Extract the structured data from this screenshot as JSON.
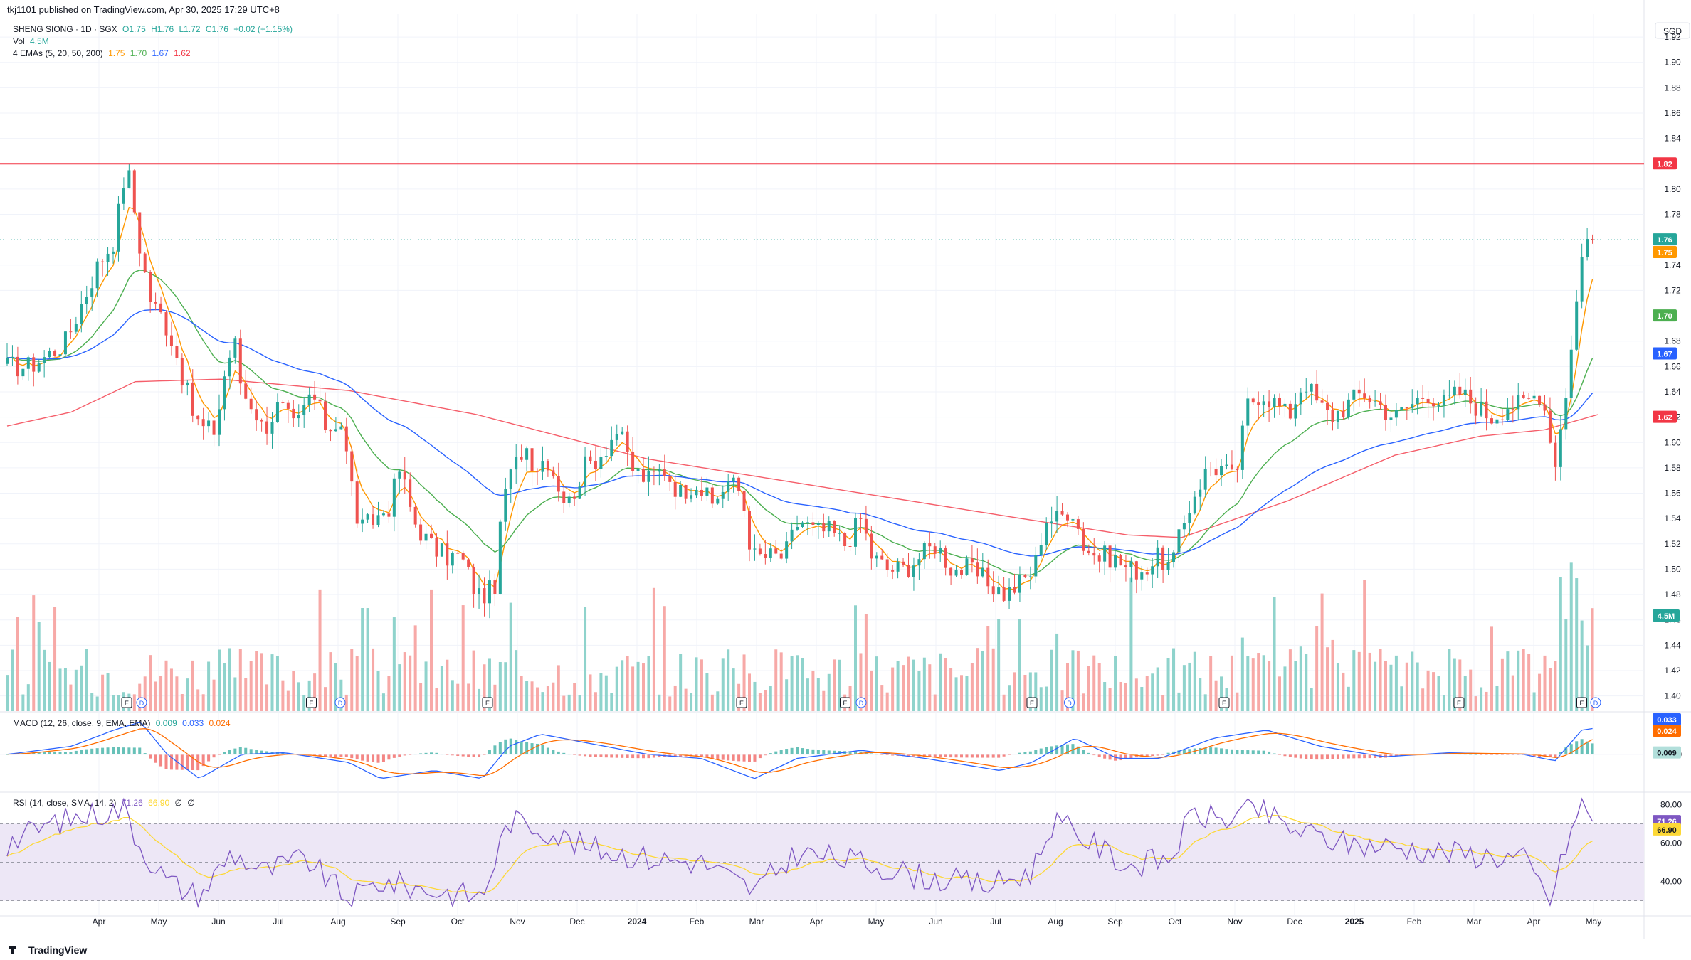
{
  "publisher": {
    "text": "tkj1101 published on TradingView.com, Apr 30, 2025 17:29 UTC+8"
  },
  "legend": {
    "symbol": "SHENG SIONG · 1D · SGX",
    "ohlc": {
      "o": "O1.75",
      "h": "H1.76",
      "l": "L1.72",
      "c": "C1.76",
      "chg": "+0.02 (+1.15%)"
    },
    "vol_label": "Vol",
    "vol_value": "4.5M",
    "ema_label": "4 EMAs (5, 20, 50, 200)",
    "ema_values": [
      "1.75",
      "1.70",
      "1.67",
      "1.62"
    ]
  },
  "macd_legend": {
    "label": "MACD (12, 26, close, 9, EMA, EMA)",
    "values": [
      "0.009",
      "0.033",
      "0.024"
    ]
  },
  "rsi_legend": {
    "label": "RSI (14, close, SMA, 14, 2)",
    "values": [
      "71.26",
      "66.90",
      "∅",
      "∅"
    ]
  },
  "branding": "TradingView",
  "colors": {
    "up": "#26a69a",
    "down": "#ef5350",
    "ema5": "#ff9800",
    "ema20": "#4caf50",
    "ema50": "#2962ff",
    "ema200": "#f23645",
    "vol_up": "#8fd3cc",
    "vol_down": "#f7a9a7",
    "macd": "#2962ff",
    "signal": "#ff6d00",
    "rsi": "#7e57c2",
    "rsi_ma": "#fdd835",
    "rsi_band": "#ede7f6",
    "resistance": "#f23645",
    "grid": "#f0f3fa"
  },
  "chart_data": {
    "type": "candlestick",
    "symbol": "SHENG SIONG",
    "currency": "SGD",
    "price_axis": {
      "ticks": [
        "1.92",
        "1.90",
        "1.88",
        "1.86",
        "1.84",
        "1.80",
        "1.78",
        "1.74",
        "1.72",
        "1.68",
        "1.66",
        "1.64",
        "1.62",
        "1.60",
        "1.58",
        "1.56",
        "1.54",
        "1.52",
        "1.50",
        "1.48",
        "1.46",
        "1.44",
        "1.42",
        "1.40"
      ],
      "ylim": [
        1.388,
        1.938
      ]
    },
    "x_axis_ticks": [
      "Apr",
      "May",
      "Jun",
      "Jul",
      "Aug",
      "Sep",
      "Oct",
      "Nov",
      "Dec",
      "2024",
      "Feb",
      "Mar",
      "Apr",
      "May",
      "Jun",
      "Jul",
      "Aug",
      "Sep",
      "Oct",
      "Nov",
      "Dec",
      "2025",
      "Feb",
      "Mar",
      "Apr",
      "May"
    ],
    "resistance_level": 1.82,
    "price_labels": [
      "1.82",
      "1.76",
      "1.75",
      "1.70",
      "1.67",
      "1.62"
    ],
    "volume_label": "4.5M",
    "price_path": [
      [
        0,
        1.66
      ],
      [
        20,
        1.66
      ],
      [
        40,
        1.67
      ],
      [
        55,
        1.68
      ],
      [
        70,
        1.71
      ],
      [
        85,
        1.74
      ],
      [
        100,
        1.76
      ],
      [
        112,
        1.82
      ],
      [
        118,
        1.79
      ],
      [
        125,
        1.75
      ],
      [
        135,
        1.71
      ],
      [
        145,
        1.7
      ],
      [
        155,
        1.68
      ],
      [
        165,
        1.65
      ],
      [
        175,
        1.62
      ],
      [
        185,
        1.61
      ],
      [
        195,
        1.61
      ],
      [
        205,
        1.66
      ],
      [
        213,
        1.68
      ],
      [
        220,
        1.64
      ],
      [
        230,
        1.63
      ],
      [
        240,
        1.61
      ],
      [
        255,
        1.63
      ],
      [
        270,
        1.61
      ],
      [
        285,
        1.64
      ],
      [
        300,
        1.61
      ],
      [
        312,
        1.62
      ],
      [
        322,
        1.57
      ],
      [
        330,
        1.53
      ],
      [
        345,
        1.54
      ],
      [
        358,
        1.55
      ],
      [
        368,
        1.58
      ],
      [
        380,
        1.54
      ],
      [
        395,
        1.52
      ],
      [
        410,
        1.51
      ],
      [
        425,
        1.51
      ],
      [
        440,
        1.48
      ],
      [
        450,
        1.48
      ],
      [
        458,
        1.49
      ],
      [
        465,
        1.56
      ],
      [
        475,
        1.58
      ],
      [
        485,
        1.6
      ],
      [
        495,
        1.58
      ],
      [
        505,
        1.59
      ],
      [
        515,
        1.57
      ],
      [
        525,
        1.55
      ],
      [
        540,
        1.58
      ],
      [
        555,
        1.59
      ],
      [
        572,
        1.61
      ],
      [
        585,
        1.58
      ],
      [
        600,
        1.57
      ],
      [
        615,
        1.58
      ],
      [
        630,
        1.56
      ],
      [
        645,
        1.57
      ],
      [
        660,
        1.55
      ],
      [
        675,
        1.57
      ],
      [
        688,
        1.56
      ],
      [
        698,
        1.51
      ],
      [
        712,
        1.51
      ],
      [
        728,
        1.51
      ],
      [
        742,
        1.54
      ],
      [
        756,
        1.53
      ],
      [
        770,
        1.53
      ],
      [
        785,
        1.52
      ],
      [
        800,
        1.54
      ],
      [
        810,
        1.51
      ],
      [
        825,
        1.5
      ],
      [
        840,
        1.5
      ],
      [
        855,
        1.51
      ],
      [
        870,
        1.52
      ],
      [
        885,
        1.5
      ],
      [
        900,
        1.5
      ],
      [
        918,
        1.49
      ],
      [
        935,
        1.48
      ],
      [
        950,
        1.49
      ],
      [
        962,
        1.5
      ],
      [
        972,
        1.54
      ],
      [
        985,
        1.54
      ],
      [
        997,
        1.55
      ],
      [
        1008,
        1.52
      ],
      [
        1020,
        1.51
      ],
      [
        1035,
        1.51
      ],
      [
        1050,
        1.5
      ],
      [
        1065,
        1.5
      ],
      [
        1080,
        1.51
      ],
      [
        1090,
        1.5
      ],
      [
        1100,
        1.53
      ],
      [
        1112,
        1.56
      ],
      [
        1125,
        1.58
      ],
      [
        1138,
        1.58
      ],
      [
        1150,
        1.57
      ],
      [
        1162,
        1.63
      ],
      [
        1175,
        1.64
      ],
      [
        1190,
        1.63
      ],
      [
        1200,
        1.62
      ],
      [
        1215,
        1.65
      ],
      [
        1228,
        1.63
      ],
      [
        1240,
        1.62
      ],
      [
        1255,
        1.63
      ],
      [
        1270,
        1.64
      ],
      [
        1285,
        1.63
      ],
      [
        1300,
        1.62
      ],
      [
        1315,
        1.63
      ],
      [
        1330,
        1.64
      ],
      [
        1345,
        1.63
      ],
      [
        1360,
        1.64
      ],
      [
        1375,
        1.63
      ],
      [
        1390,
        1.62
      ],
      [
        1405,
        1.63
      ],
      [
        1420,
        1.63
      ],
      [
        1435,
        1.64
      ],
      [
        1443,
        1.62
      ],
      [
        1450,
        1.58
      ],
      [
        1456,
        1.62
      ],
      [
        1462,
        1.65
      ],
      [
        1470,
        1.71
      ],
      [
        1476,
        1.76
      ],
      [
        1482,
        1.76
      ],
      [
        1490,
        1.76
      ]
    ],
    "series": [
      {
        "name": "EMA 5",
        "last": 1.75
      },
      {
        "name": "EMA 20",
        "last": 1.7
      },
      {
        "name": "EMA 50",
        "last": 1.67
      },
      {
        "name": "EMA 200",
        "last": 1.62
      },
      {
        "name": "Vol",
        "last": "4.5M"
      }
    ],
    "ema200_path": [
      [
        0,
        1.613
      ],
      [
        60,
        1.624
      ],
      [
        120,
        1.648
      ],
      [
        200,
        1.65
      ],
      [
        320,
        1.641
      ],
      [
        440,
        1.622
      ],
      [
        600,
        1.587
      ],
      [
        800,
        1.56
      ],
      [
        950,
        1.54
      ],
      [
        1050,
        1.527
      ],
      [
        1100,
        1.525
      ],
      [
        1200,
        1.554
      ],
      [
        1300,
        1.59
      ],
      [
        1380,
        1.605
      ],
      [
        1440,
        1.61
      ],
      [
        1490,
        1.622
      ]
    ],
    "macd": {
      "axis_ticks": [
        "0.000"
      ],
      "values": {
        "histogram": 0.009,
        "macd": 0.033,
        "signal": 0.024
      },
      "path": [
        [
          0,
          0.0
        ],
        [
          60,
          0.01
        ],
        [
          100,
          0.03
        ],
        [
          125,
          0.04
        ],
        [
          150,
          0.0
        ],
        [
          180,
          -0.03
        ],
        [
          220,
          0.0
        ],
        [
          260,
          0.002
        ],
        [
          320,
          -0.01
        ],
        [
          350,
          -0.03
        ],
        [
          400,
          -0.02
        ],
        [
          445,
          -0.03
        ],
        [
          470,
          0.01
        ],
        [
          500,
          0.025
        ],
        [
          540,
          0.015
        ],
        [
          600,
          0.0
        ],
        [
          650,
          -0.005
        ],
        [
          700,
          -0.03
        ],
        [
          740,
          -0.005
        ],
        [
          800,
          0.005
        ],
        [
          860,
          -0.005
        ],
        [
          930,
          -0.02
        ],
        [
          960,
          -0.01
        ],
        [
          1000,
          0.02
        ],
        [
          1040,
          -0.005
        ],
        [
          1080,
          -0.005
        ],
        [
          1130,
          0.02
        ],
        [
          1180,
          0.03
        ],
        [
          1230,
          0.01
        ],
        [
          1290,
          -0.003
        ],
        [
          1350,
          0.002
        ],
        [
          1420,
          0.0
        ],
        [
          1450,
          -0.008
        ],
        [
          1475,
          0.03
        ],
        [
          1490,
          0.033
        ]
      ],
      "ylim": [
        -0.045,
        0.05
      ]
    },
    "rsi": {
      "axis_ticks": [
        "80.00",
        "60.00",
        "40.00"
      ],
      "upper": 70,
      "middle": 50,
      "lower": 30,
      "values": {
        "rsi": 71.26,
        "rsi_ma": 66.9
      },
      "path": [
        [
          0,
          60
        ],
        [
          40,
          70
        ],
        [
          80,
          75
        ],
        [
          110,
          78
        ],
        [
          125,
          58
        ],
        [
          150,
          40
        ],
        [
          180,
          32
        ],
        [
          210,
          55
        ],
        [
          240,
          45
        ],
        [
          280,
          52
        ],
        [
          320,
          30
        ],
        [
          350,
          40
        ],
        [
          400,
          35
        ],
        [
          445,
          32
        ],
        [
          470,
          72
        ],
        [
          500,
          68
        ],
        [
          540,
          58
        ],
        [
          600,
          52
        ],
        [
          650,
          50
        ],
        [
          700,
          35
        ],
        [
          740,
          55
        ],
        [
          800,
          50
        ],
        [
          860,
          42
        ],
        [
          920,
          38
        ],
        [
          960,
          45
        ],
        [
          980,
          72
        ],
        [
          1010,
          62
        ],
        [
          1050,
          48
        ],
        [
          1090,
          52
        ],
        [
          1110,
          75
        ],
        [
          1140,
          72
        ],
        [
          1170,
          78
        ],
        [
          1200,
          68
        ],
        [
          1250,
          60
        ],
        [
          1300,
          58
        ],
        [
          1350,
          55
        ],
        [
          1420,
          52
        ],
        [
          1446,
          30
        ],
        [
          1462,
          62
        ],
        [
          1475,
          80
        ],
        [
          1490,
          71.26
        ]
      ],
      "ylim": [
        25,
        85
      ]
    }
  }
}
